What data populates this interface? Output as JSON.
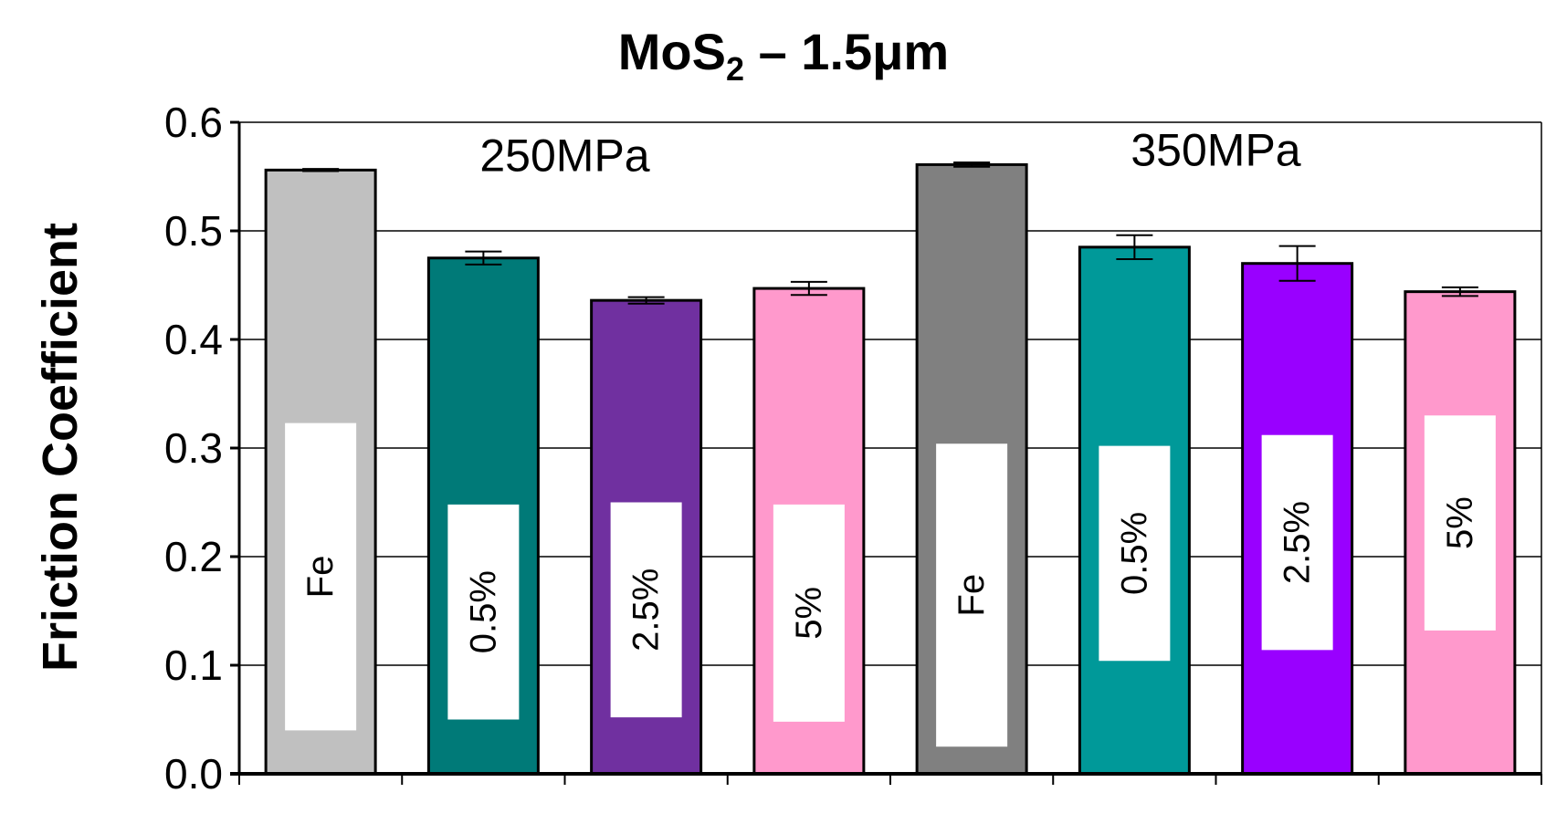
{
  "chart_data": {
    "type": "bar",
    "title_main": "MoS",
    "title_sub": "2",
    "title_rest": " – 1.5μm",
    "ylabel": "Friction Coefficient",
    "xlabel": "",
    "ylim": [
      0,
      0.6
    ],
    "yticks": [
      "0.0",
      "0.1",
      "0.2",
      "0.3",
      "0.4",
      "0.5",
      "0.6"
    ],
    "ytick_values": [
      0,
      0.1,
      0.2,
      0.3,
      0.4,
      0.5,
      0.6
    ],
    "grid": true,
    "groups": [
      {
        "label": "250MPa"
      },
      {
        "label": "350MPa"
      }
    ],
    "bars": [
      {
        "group": "250MPa",
        "label": "Fe",
        "value": 0.556,
        "error": 0.001,
        "color": "#c0c0c0"
      },
      {
        "group": "250MPa",
        "label": "0.5%",
        "value": 0.475,
        "error": 0.006,
        "color": "#007a78"
      },
      {
        "group": "250MPa",
        "label": "2.5%",
        "value": 0.436,
        "error": 0.003,
        "color": "#7030a0"
      },
      {
        "group": "250MPa",
        "label": "5%",
        "value": 0.447,
        "error": 0.006,
        "color": "#ff99cc"
      },
      {
        "group": "350MPa",
        "label": "Fe",
        "value": 0.561,
        "error": 0.002,
        "color": "#808080"
      },
      {
        "group": "350MPa",
        "label": "0.5%",
        "value": 0.485,
        "error": 0.011,
        "color": "#009999"
      },
      {
        "group": "350MPa",
        "label": "2.5%",
        "value": 0.47,
        "error": 0.016,
        "color": "#9900ff"
      },
      {
        "group": "350MPa",
        "label": "5%",
        "value": 0.444,
        "error": 0.004,
        "color": "#ff99cc"
      }
    ]
  }
}
